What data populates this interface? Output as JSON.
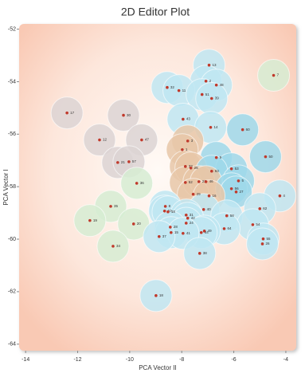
{
  "chart_data": {
    "type": "scatter",
    "title": "2D Editor Plot",
    "x_label": "PCA Vector II",
    "y_label": "PCA Vector I",
    "xlim": [
      -14.25,
      -3.6
    ],
    "ylim": [
      -64.25,
      -51.8
    ],
    "xticks": [
      -14,
      -12,
      -10,
      -8,
      -6,
      -4
    ],
    "yticks": [
      -52,
      -54,
      -56,
      -58,
      -60,
      -62,
      -64
    ],
    "points": [
      {
        "label": "13",
        "x": -6.95,
        "y": -53.37,
        "color": "#bfe6f2"
      },
      {
        "label": "7",
        "x": -4.47,
        "y": -53.76,
        "color": "#d6ecd2"
      },
      {
        "label": "2",
        "x": -7.07,
        "y": -53.98,
        "color": "#bfe6f2"
      },
      {
        "label": "48",
        "x": -6.67,
        "y": -54.13,
        "color": "#bfe6f2"
      },
      {
        "label": "32",
        "x": -8.56,
        "y": -54.22,
        "color": "#bfe6f2"
      },
      {
        "label": "11",
        "x": -8.11,
        "y": -54.34,
        "color": "#bfe6f2"
      },
      {
        "label": "51",
        "x": -7.22,
        "y": -54.49,
        "color": "#bfe6f2"
      },
      {
        "label": "39",
        "x": -6.85,
        "y": -54.64,
        "color": "#bfe6f2"
      },
      {
        "label": "17",
        "x": -12.41,
        "y": -55.19,
        "color": "#dcd3d3"
      },
      {
        "label": "30",
        "x": -10.24,
        "y": -55.28,
        "color": "#dcd3d3"
      },
      {
        "label": "43",
        "x": -7.95,
        "y": -55.43,
        "color": "#bfe6f2"
      },
      {
        "label": "14",
        "x": -6.89,
        "y": -55.74,
        "color": "#bfe6f2"
      },
      {
        "label": "60",
        "x": -5.66,
        "y": -55.83,
        "color": "#9fd8ea"
      },
      {
        "label": "12",
        "x": -11.16,
        "y": -56.22,
        "color": "#dcd3d3"
      },
      {
        "label": "47",
        "x": -9.54,
        "y": -56.22,
        "color": "#dcd3d3"
      },
      {
        "label": "3",
        "x": -7.77,
        "y": -56.26,
        "color": "#e8c7a8"
      },
      {
        "label": "1",
        "x": -7.98,
        "y": -56.59,
        "color": "#e8c7a8"
      },
      {
        "label": "9",
        "x": -6.67,
        "y": -56.89,
        "color": "#9fd8ea"
      },
      {
        "label": "50",
        "x": -4.78,
        "y": -56.86,
        "color": "#9fd8ea"
      },
      {
        "label": "21",
        "x": -10.46,
        "y": -57.08,
        "color": "#dcd3d3"
      },
      {
        "label": "57",
        "x": -10.03,
        "y": -57.05,
        "color": "#dcd3d3"
      },
      {
        "label": "33",
        "x": -7.86,
        "y": -57.23,
        "color": "#e8c7a8"
      },
      {
        "label": "25",
        "x": -7.65,
        "y": -57.29,
        "color": "#e8c7a8"
      },
      {
        "label": "53",
        "x": -6.09,
        "y": -57.32,
        "color": "#9fd8ea"
      },
      {
        "label": "63",
        "x": -6.85,
        "y": -57.41,
        "color": "#9fd8ea"
      },
      {
        "label": "36",
        "x": -9.73,
        "y": -57.87,
        "color": "#d6ecd2"
      },
      {
        "label": "52",
        "x": -7.86,
        "y": -57.84,
        "color": "#e8c7a8"
      },
      {
        "label": "22",
        "x": -7.34,
        "y": -57.81,
        "color": "#e8c7a8"
      },
      {
        "label": "46",
        "x": -7.07,
        "y": -57.81,
        "color": "#e8c7a8"
      },
      {
        "label": "5",
        "x": -5.82,
        "y": -57.78,
        "color": "#9fd8ea"
      },
      {
        "label": "56",
        "x": -6.09,
        "y": -58.08,
        "color": "#9fd8ea"
      },
      {
        "label": "27",
        "x": -5.91,
        "y": -58.2,
        "color": "#9fd8ea"
      },
      {
        "label": "29",
        "x": -7.56,
        "y": -58.29,
        "color": "#e8c7a8"
      },
      {
        "label": "16",
        "x": -6.95,
        "y": -58.35,
        "color": "#e8c7a8"
      },
      {
        "label": "4",
        "x": -4.23,
        "y": -58.35,
        "color": "#bfe6f2"
      },
      {
        "label": "8",
        "x": -8.63,
        "y": -58.75,
        "color": "#bfe6f2"
      },
      {
        "label": "35",
        "x": -10.73,
        "y": -58.75,
        "color": "#d6ecd2"
      },
      {
        "label": "10",
        "x": -8.66,
        "y": -58.93,
        "color": "#bfe6f2"
      },
      {
        "label": "18",
        "x": -8.53,
        "y": -58.96,
        "color": "#bfe6f2"
      },
      {
        "label": "40",
        "x": -7.16,
        "y": -58.87,
        "color": "#bfe6f2"
      },
      {
        "label": "62",
        "x": -5.0,
        "y": -58.84,
        "color": "#bfe6f2"
      },
      {
        "label": "31",
        "x": -7.83,
        "y": -59.08,
        "color": "#bfe6f2"
      },
      {
        "label": "42",
        "x": -7.77,
        "y": -59.2,
        "color": "#bfe6f2"
      },
      {
        "label": "58",
        "x": -6.27,
        "y": -59.11,
        "color": "#bfe6f2"
      },
      {
        "label": "19",
        "x": -11.53,
        "y": -59.29,
        "color": "#d6ecd2"
      },
      {
        "label": "24",
        "x": -7.83,
        "y": -59.39,
        "color": "#bfe6f2"
      },
      {
        "label": "20",
        "x": -9.85,
        "y": -59.42,
        "color": "#d6ecd2"
      },
      {
        "label": "54",
        "x": -5.27,
        "y": -59.45,
        "color": "#bfe6f2"
      },
      {
        "label": "28",
        "x": -8.44,
        "y": -59.54,
        "color": "#bfe6f2"
      },
      {
        "label": "64",
        "x": -6.37,
        "y": -59.6,
        "color": "#bfe6f2"
      },
      {
        "label": "49",
        "x": -7.13,
        "y": -59.69,
        "color": "#bfe6f2"
      },
      {
        "label": "44",
        "x": -7.25,
        "y": -59.75,
        "color": "#bfe6f2"
      },
      {
        "label": "15",
        "x": -8.41,
        "y": -59.75,
        "color": "#bfe6f2"
      },
      {
        "label": "41",
        "x": -7.95,
        "y": -59.78,
        "color": "#bfe6f2"
      },
      {
        "label": "37",
        "x": -8.87,
        "y": -59.9,
        "color": "#bfe6f2"
      },
      {
        "label": "55",
        "x": -4.87,
        "y": -59.99,
        "color": "#bfe6f2"
      },
      {
        "label": "26",
        "x": -4.9,
        "y": -60.18,
        "color": "#bfe6f2"
      },
      {
        "label": "34",
        "x": -10.64,
        "y": -60.27,
        "color": "#d6ecd2"
      },
      {
        "label": "38",
        "x": -7.31,
        "y": -60.54,
        "color": "#bfe6f2"
      },
      {
        "label": "18",
        "x": -8.99,
        "y": -62.15,
        "color": "#bfe6f2"
      }
    ]
  }
}
